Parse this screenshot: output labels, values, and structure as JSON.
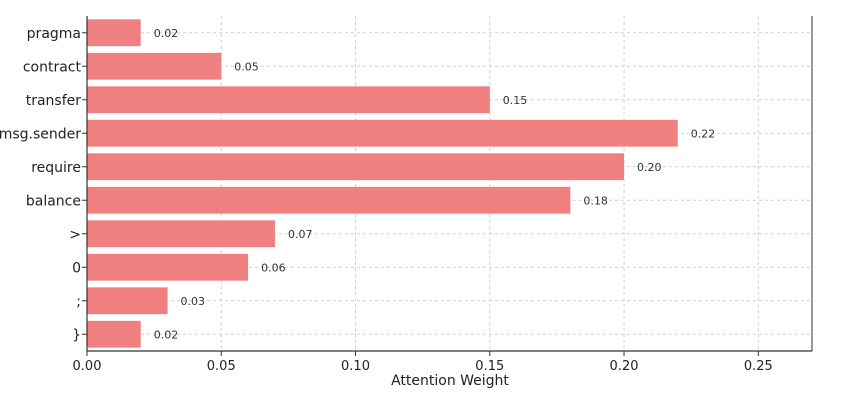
{
  "chart_data": {
    "type": "bar",
    "orientation": "horizontal",
    "categories": [
      "pragma",
      "contract",
      "transfer",
      "msg.sender",
      "require",
      "balance",
      ">",
      "0",
      ";",
      "}"
    ],
    "values": [
      0.02,
      0.05,
      0.15,
      0.22,
      0.2,
      0.18,
      0.07,
      0.06,
      0.03,
      0.02
    ],
    "value_labels": [
      "0.02",
      "0.05",
      "0.15",
      "0.22",
      "0.20",
      "0.18",
      "0.07",
      "0.06",
      "0.03",
      "0.02"
    ],
    "title": "",
    "xlabel": "Attention Weight",
    "ylabel": "",
    "xlim": [
      0,
      0.27
    ],
    "xticks": [
      0.0,
      0.05,
      0.1,
      0.15,
      0.2,
      0.25
    ],
    "xtick_labels": [
      "0.00",
      "0.05",
      "0.10",
      "0.15",
      "0.20",
      "0.25"
    ],
    "grid": true,
    "bar_color": "#f08080",
    "grid_color": "#cfcfcf",
    "axis_color": "#333333",
    "text_color": "#222222"
  }
}
